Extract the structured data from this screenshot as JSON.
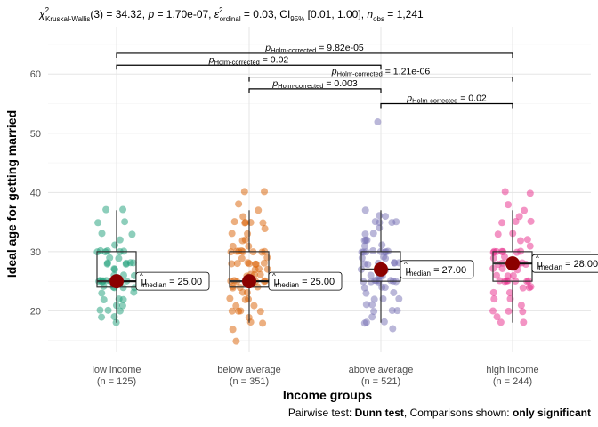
{
  "chart_data": {
    "type": "scatter",
    "title_parts": {
      "chi": "χ",
      "chi_sup": "2",
      "chi_sub": "Kruskal-Wallis",
      "df": "(3) = 34.32, ",
      "p_symbol": "p",
      "p_value": " = 1.70e-07, ",
      "eps": "ε",
      "eps_sup": "2",
      "eps_sub": "ordinal",
      "eps_value": " = 0.03, CI",
      "ci_sub": "95%",
      "ci_value": " [0.01, 1.00], ",
      "n_symbol": "n",
      "n_sub": "obs",
      "n_value": " = 1,241"
    },
    "xlabel": "Income groups",
    "ylabel": "Ideal age for getting married",
    "caption": {
      "prefix": "Pairwise test: ",
      "test": "Dunn test",
      "middle": ", Comparisons shown: ",
      "shown": "only significant"
    },
    "ylim": [
      13,
      68
    ],
    "y_ticks": [
      20,
      30,
      40,
      50,
      60
    ],
    "categories": [
      {
        "name": "low income",
        "n_label": "(n = 125)",
        "color": "#1b9e77",
        "median_color": "#8b0000",
        "box": {
          "q1": 24,
          "median": 25,
          "q3": 30,
          "whisker_low": 18,
          "whisker_high": 37
        },
        "median_label": "25.00",
        "points": [
          18,
          19,
          19,
          20,
          20,
          20,
          21,
          21,
          22,
          22,
          22,
          23,
          23,
          24,
          24,
          24,
          24,
          24,
          25,
          25,
          25,
          25,
          25,
          25,
          25,
          25,
          25,
          25,
          25,
          26,
          26,
          26,
          27,
          27,
          28,
          28,
          28,
          28,
          28,
          28,
          29,
          29,
          30,
          30,
          30,
          30,
          30,
          30,
          31,
          32,
          33,
          33,
          35,
          35,
          37,
          37
        ]
      },
      {
        "name": "below average",
        "n_label": "(n = 351)",
        "color": "#d95f02",
        "median_color": "#8b0000",
        "box": {
          "q1": 24,
          "median": 25,
          "q3": 30,
          "whisker_low": 18,
          "whisker_high": 37
        },
        "median_label": "25.00",
        "points": [
          15,
          17,
          18,
          18,
          19,
          20,
          20,
          20,
          20,
          21,
          21,
          22,
          22,
          22,
          23,
          23,
          24,
          24,
          24,
          24,
          25,
          25,
          25,
          25,
          25,
          25,
          25,
          25,
          25,
          25,
          25,
          26,
          26,
          26,
          26,
          27,
          27,
          27,
          28,
          28,
          28,
          28,
          28,
          28,
          28,
          29,
          29,
          30,
          30,
          30,
          30,
          30,
          30,
          30,
          30,
          31,
          31,
          32,
          32,
          33,
          33,
          34,
          35,
          35,
          35,
          35,
          35,
          36,
          37,
          38,
          40,
          40
        ]
      },
      {
        "name": "above average",
        "n_label": "(n = 521)",
        "color": "#7570b3",
        "median_color": "#8b0000",
        "box": {
          "q1": 25,
          "median": 27,
          "q3": 30,
          "whisker_low": 18,
          "whisker_high": 37
        },
        "median_label": "27.00",
        "points": [
          17,
          18,
          18,
          18,
          19,
          20,
          20,
          20,
          21,
          21,
          22,
          22,
          22,
          23,
          23,
          24,
          24,
          24,
          25,
          25,
          25,
          25,
          25,
          25,
          25,
          25,
          25,
          26,
          26,
          26,
          26,
          27,
          27,
          27,
          27,
          27,
          27,
          28,
          28,
          28,
          28,
          28,
          28,
          29,
          29,
          29,
          30,
          30,
          30,
          30,
          30,
          30,
          30,
          30,
          31,
          31,
          32,
          32,
          32,
          33,
          33,
          34,
          35,
          35,
          35,
          35,
          36,
          36,
          37,
          52
        ]
      },
      {
        "name": "high income",
        "n_label": "(n = 244)",
        "color": "#e7298a",
        "median_color": "#8b0000",
        "box": {
          "q1": 25,
          "median": 28,
          "q3": 30,
          "whisker_low": 18,
          "whisker_high": 37
        },
        "median_label": "28.00",
        "points": [
          18,
          18,
          19,
          20,
          20,
          20,
          21,
          22,
          22,
          23,
          23,
          24,
          24,
          24,
          25,
          25,
          25,
          25,
          25,
          25,
          25,
          26,
          26,
          26,
          27,
          27,
          27,
          28,
          28,
          28,
          28,
          28,
          28,
          29,
          29,
          30,
          30,
          30,
          30,
          30,
          30,
          30,
          31,
          32,
          32,
          33,
          33,
          35,
          35,
          35,
          36,
          37,
          38,
          40,
          40
        ]
      }
    ],
    "median_prefix": "μ",
    "median_sub": "median",
    "brackets": [
      {
        "from": 0,
        "to": 3,
        "y": 63.5,
        "label_sub": "Holm-corrected",
        "value": "9.82e-05"
      },
      {
        "from": 0,
        "to": 2,
        "y": 61.5,
        "label_sub": "Holm-corrected",
        "value": "0.02"
      },
      {
        "from": 1,
        "to": 3,
        "y": 59.5,
        "label_sub": "Holm-corrected",
        "value": "1.21e-06"
      },
      {
        "from": 1,
        "to": 2,
        "y": 57.5,
        "label_sub": "Holm-corrected",
        "value": "0.003"
      },
      {
        "from": 2,
        "to": 3,
        "y": 55.0,
        "label_sub": "Holm-corrected",
        "value": "0.02"
      }
    ],
    "bracket_p": "p",
    "grid": true
  }
}
